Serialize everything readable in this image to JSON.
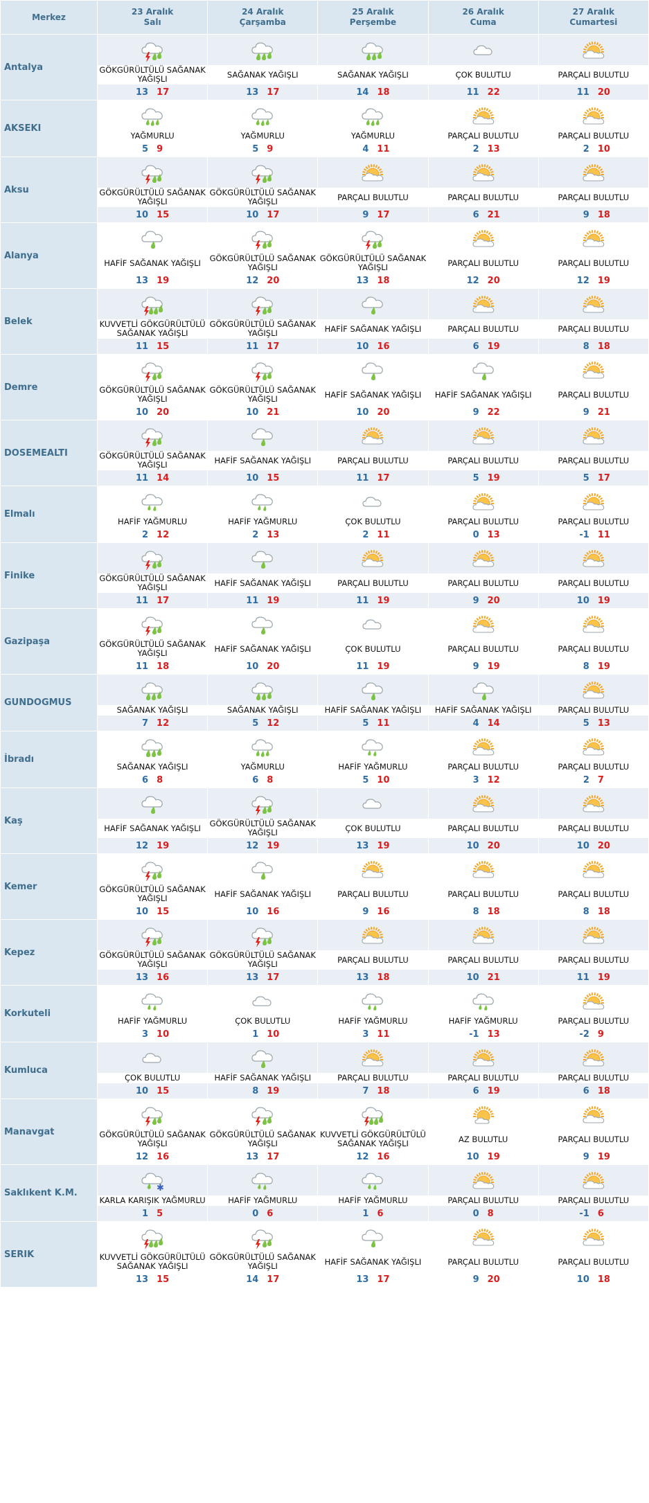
{
  "header": {
    "city_label": "Merkez",
    "days": [
      {
        "date": "23 Aralık",
        "weekday": "Salı"
      },
      {
        "date": "24 Aralık",
        "weekday": "Çarşamba"
      },
      {
        "date": "25 Aralık",
        "weekday": "Perşembe"
      },
      {
        "date": "26 Aralık",
        "weekday": "Cuma"
      },
      {
        "date": "27 Aralık",
        "weekday": "Cumartesi"
      }
    ]
  },
  "icon_map": {
    "GÖKGÜRÜLTÜLÜ SAĞANAK YAĞIŞLI": "thunder-shower-icon",
    "KUVVETLİ GÖKGÜRÜLTÜLÜ SAĞANAK YAĞIŞLI": "heavy-thunder-shower-icon",
    "SAĞANAK YAĞIŞLI": "heavy-shower-icon",
    "HAFİF SAĞANAK YAĞIŞLI": "light-shower-icon",
    "YAĞMURLU": "rain-icon",
    "HAFİF YAĞMURLU": "light-rain-icon",
    "ÇOK BULUTLU": "cloudy-icon",
    "PARÇALI BULUTLU": "partly-cloudy-icon",
    "AZ BULUTLU": "mostly-sunny-icon",
    "KARLA KARIŞIK YAĞMURLU": "sleet-icon"
  },
  "colors": {
    "header_bg": "#dbe7f0",
    "city_text": "#3f6e8e",
    "shade_row": "#e9eff4",
    "low_temp": "#2e6da4",
    "high_temp": "#d81e1e",
    "rain_drop": "#7cc243",
    "lightning": "#e2231a",
    "sun": "#f6a623"
  },
  "cities": [
    {
      "name": "Antalya",
      "days": [
        {
          "cond": "GÖKGÜRÜLTÜLÜ SAĞANAK YAĞIŞLI",
          "min": "13",
          "max": "17"
        },
        {
          "cond": "SAĞANAK YAĞIŞLI",
          "min": "13",
          "max": "17"
        },
        {
          "cond": "SAĞANAK YAĞIŞLI",
          "min": "14",
          "max": "18"
        },
        {
          "cond": "ÇOK BULUTLU",
          "min": "11",
          "max": "22"
        },
        {
          "cond": "PARÇALI BULUTLU",
          "min": "11",
          "max": "20"
        }
      ]
    },
    {
      "name": "AKSEKI",
      "days": [
        {
          "cond": "YAĞMURLU",
          "min": "5",
          "max": "9"
        },
        {
          "cond": "YAĞMURLU",
          "min": "5",
          "max": "9"
        },
        {
          "cond": "YAĞMURLU",
          "min": "4",
          "max": "11"
        },
        {
          "cond": "PARÇALI BULUTLU",
          "min": "2",
          "max": "13"
        },
        {
          "cond": "PARÇALI BULUTLU",
          "min": "2",
          "max": "10"
        }
      ]
    },
    {
      "name": "Aksu",
      "days": [
        {
          "cond": "GÖKGÜRÜLTÜLÜ SAĞANAK YAĞIŞLI",
          "min": "10",
          "max": "15"
        },
        {
          "cond": "GÖKGÜRÜLTÜLÜ SAĞANAK YAĞIŞLI",
          "min": "10",
          "max": "17"
        },
        {
          "cond": "PARÇALI BULUTLU",
          "min": "9",
          "max": "17"
        },
        {
          "cond": "PARÇALI BULUTLU",
          "min": "6",
          "max": "21"
        },
        {
          "cond": "PARÇALI BULUTLU",
          "min": "9",
          "max": "18"
        }
      ]
    },
    {
      "name": "Alanya",
      "days": [
        {
          "cond": "HAFİF SAĞANAK YAĞIŞLI",
          "min": "13",
          "max": "19"
        },
        {
          "cond": "GÖKGÜRÜLTÜLÜ SAĞANAK YAĞIŞLI",
          "min": "12",
          "max": "20"
        },
        {
          "cond": "GÖKGÜRÜLTÜLÜ SAĞANAK YAĞIŞLI",
          "min": "13",
          "max": "18"
        },
        {
          "cond": "PARÇALI BULUTLU",
          "min": "12",
          "max": "20"
        },
        {
          "cond": "PARÇALI BULUTLU",
          "min": "12",
          "max": "19"
        }
      ]
    },
    {
      "name": "Belek",
      "days": [
        {
          "cond": "KUVVETLİ GÖKGÜRÜLTÜLÜ SAĞANAK YAĞIŞLI",
          "min": "11",
          "max": "15"
        },
        {
          "cond": "GÖKGÜRÜLTÜLÜ SAĞANAK YAĞIŞLI",
          "min": "11",
          "max": "17"
        },
        {
          "cond": "HAFİF SAĞANAK YAĞIŞLI",
          "min": "10",
          "max": "16"
        },
        {
          "cond": "PARÇALI BULUTLU",
          "min": "6",
          "max": "19"
        },
        {
          "cond": "PARÇALI BULUTLU",
          "min": "8",
          "max": "18"
        }
      ]
    },
    {
      "name": "Demre",
      "days": [
        {
          "cond": "GÖKGÜRÜLTÜLÜ SAĞANAK YAĞIŞLI",
          "min": "10",
          "max": "20"
        },
        {
          "cond": "GÖKGÜRÜLTÜLÜ SAĞANAK YAĞIŞLI",
          "min": "10",
          "max": "21"
        },
        {
          "cond": "HAFİF SAĞANAK YAĞIŞLI",
          "min": "10",
          "max": "20"
        },
        {
          "cond": "HAFİF SAĞANAK YAĞIŞLI",
          "min": "9",
          "max": "22"
        },
        {
          "cond": "PARÇALI BULUTLU",
          "min": "9",
          "max": "21"
        }
      ]
    },
    {
      "name": "DOSEMEALTI",
      "days": [
        {
          "cond": "GÖKGÜRÜLTÜLÜ SAĞANAK YAĞIŞLI",
          "min": "11",
          "max": "14"
        },
        {
          "cond": "HAFİF SAĞANAK YAĞIŞLI",
          "min": "10",
          "max": "15"
        },
        {
          "cond": "PARÇALI BULUTLU",
          "min": "11",
          "max": "17"
        },
        {
          "cond": "PARÇALI BULUTLU",
          "min": "5",
          "max": "19"
        },
        {
          "cond": "PARÇALI BULUTLU",
          "min": "5",
          "max": "17"
        }
      ]
    },
    {
      "name": "Elmalı",
      "days": [
        {
          "cond": "HAFİF YAĞMURLU",
          "min": "2",
          "max": "12"
        },
        {
          "cond": "HAFİF YAĞMURLU",
          "min": "2",
          "max": "13"
        },
        {
          "cond": "ÇOK BULUTLU",
          "min": "2",
          "max": "11"
        },
        {
          "cond": "PARÇALI BULUTLU",
          "min": "0",
          "max": "13"
        },
        {
          "cond": "PARÇALI BULUTLU",
          "min": "-1",
          "max": "11"
        }
      ]
    },
    {
      "name": "Finike",
      "days": [
        {
          "cond": "GÖKGÜRÜLTÜLÜ SAĞANAK YAĞIŞLI",
          "min": "11",
          "max": "17"
        },
        {
          "cond": "HAFİF SAĞANAK YAĞIŞLI",
          "min": "11",
          "max": "19"
        },
        {
          "cond": "PARÇALI BULUTLU",
          "min": "11",
          "max": "19"
        },
        {
          "cond": "PARÇALI BULUTLU",
          "min": "9",
          "max": "20"
        },
        {
          "cond": "PARÇALI BULUTLU",
          "min": "10",
          "max": "19"
        }
      ]
    },
    {
      "name": "Gazipaşa",
      "days": [
        {
          "cond": "GÖKGÜRÜLTÜLÜ SAĞANAK YAĞIŞLI",
          "min": "11",
          "max": "18"
        },
        {
          "cond": "HAFİF SAĞANAK YAĞIŞLI",
          "min": "10",
          "max": "20"
        },
        {
          "cond": "ÇOK BULUTLU",
          "min": "11",
          "max": "19"
        },
        {
          "cond": "PARÇALI BULUTLU",
          "min": "9",
          "max": "19"
        },
        {
          "cond": "PARÇALI BULUTLU",
          "min": "8",
          "max": "19"
        }
      ]
    },
    {
      "name": "GUNDOGMUS",
      "days": [
        {
          "cond": "SAĞANAK YAĞIŞLI",
          "min": "7",
          "max": "12"
        },
        {
          "cond": "SAĞANAK YAĞIŞLI",
          "min": "5",
          "max": "12"
        },
        {
          "cond": "HAFİF SAĞANAK YAĞIŞLI",
          "min": "5",
          "max": "11"
        },
        {
          "cond": "HAFİF SAĞANAK YAĞIŞLI",
          "min": "4",
          "max": "14"
        },
        {
          "cond": "PARÇALI BULUTLU",
          "min": "5",
          "max": "13"
        }
      ]
    },
    {
      "name": "İbradı",
      "days": [
        {
          "cond": "SAĞANAK YAĞIŞLI",
          "min": "6",
          "max": "8"
        },
        {
          "cond": "YAĞMURLU",
          "min": "6",
          "max": "8"
        },
        {
          "cond": "HAFİF YAĞMURLU",
          "min": "5",
          "max": "10"
        },
        {
          "cond": "PARÇALI BULUTLU",
          "min": "3",
          "max": "12"
        },
        {
          "cond": "PARÇALI BULUTLU",
          "min": "2",
          "max": "7"
        }
      ]
    },
    {
      "name": "Kaş",
      "days": [
        {
          "cond": "HAFİF SAĞANAK YAĞIŞLI",
          "min": "12",
          "max": "19"
        },
        {
          "cond": "GÖKGÜRÜLTÜLÜ SAĞANAK YAĞIŞLI",
          "min": "12",
          "max": "19"
        },
        {
          "cond": "ÇOK BULUTLU",
          "min": "13",
          "max": "19"
        },
        {
          "cond": "PARÇALI BULUTLU",
          "min": "10",
          "max": "20"
        },
        {
          "cond": "PARÇALI BULUTLU",
          "min": "10",
          "max": "20"
        }
      ]
    },
    {
      "name": "Kemer",
      "days": [
        {
          "cond": "GÖKGÜRÜLTÜLÜ SAĞANAK YAĞIŞLI",
          "min": "10",
          "max": "15"
        },
        {
          "cond": "HAFİF SAĞANAK YAĞIŞLI",
          "min": "10",
          "max": "16"
        },
        {
          "cond": "PARÇALI BULUTLU",
          "min": "9",
          "max": "16"
        },
        {
          "cond": "PARÇALI BULUTLU",
          "min": "8",
          "max": "18"
        },
        {
          "cond": "PARÇALI BULUTLU",
          "min": "8",
          "max": "18"
        }
      ]
    },
    {
      "name": "Kepez",
      "days": [
        {
          "cond": "GÖKGÜRÜLTÜLÜ SAĞANAK YAĞIŞLI",
          "min": "13",
          "max": "16"
        },
        {
          "cond": "GÖKGÜRÜLTÜLÜ SAĞANAK YAĞIŞLI",
          "min": "13",
          "max": "17"
        },
        {
          "cond": "PARÇALI BULUTLU",
          "min": "13",
          "max": "18"
        },
        {
          "cond": "PARÇALI BULUTLU",
          "min": "10",
          "max": "21"
        },
        {
          "cond": "PARÇALI BULUTLU",
          "min": "11",
          "max": "19"
        }
      ]
    },
    {
      "name": "Korkuteli",
      "days": [
        {
          "cond": "HAFİF YAĞMURLU",
          "min": "3",
          "max": "10"
        },
        {
          "cond": "ÇOK BULUTLU",
          "min": "1",
          "max": "10"
        },
        {
          "cond": "HAFİF YAĞMURLU",
          "min": "3",
          "max": "11"
        },
        {
          "cond": "HAFİF YAĞMURLU",
          "min": "-1",
          "max": "13"
        },
        {
          "cond": "PARÇALI BULUTLU",
          "min": "-2",
          "max": "9"
        }
      ]
    },
    {
      "name": "Kumluca",
      "days": [
        {
          "cond": "ÇOK BULUTLU",
          "min": "10",
          "max": "15"
        },
        {
          "cond": "HAFİF SAĞANAK YAĞIŞLI",
          "min": "8",
          "max": "19"
        },
        {
          "cond": "PARÇALI BULUTLU",
          "min": "7",
          "max": "18"
        },
        {
          "cond": "PARÇALI BULUTLU",
          "min": "6",
          "max": "19"
        },
        {
          "cond": "PARÇALI BULUTLU",
          "min": "6",
          "max": "18"
        }
      ]
    },
    {
      "name": "Manavgat",
      "days": [
        {
          "cond": "GÖKGÜRÜLTÜLÜ SAĞANAK YAĞIŞLI",
          "min": "12",
          "max": "16"
        },
        {
          "cond": "GÖKGÜRÜLTÜLÜ SAĞANAK YAĞIŞLI",
          "min": "13",
          "max": "17"
        },
        {
          "cond": "KUVVETLİ GÖKGÜRÜLTÜLÜ SAĞANAK YAĞIŞLI",
          "min": "12",
          "max": "16"
        },
        {
          "cond": "AZ BULUTLU",
          "min": "10",
          "max": "19"
        },
        {
          "cond": "PARÇALI BULUTLU",
          "min": "9",
          "max": "19"
        }
      ]
    },
    {
      "name": "Saklıkent K.M.",
      "days": [
        {
          "cond": "KARLA KARIŞIK YAĞMURLU",
          "min": "1",
          "max": "5"
        },
        {
          "cond": "HAFİF YAĞMURLU",
          "min": "0",
          "max": "6"
        },
        {
          "cond": "HAFİF YAĞMURLU",
          "min": "1",
          "max": "6"
        },
        {
          "cond": "PARÇALI BULUTLU",
          "min": "0",
          "max": "8"
        },
        {
          "cond": "PARÇALI BULUTLU",
          "min": "-1",
          "max": "6"
        }
      ]
    },
    {
      "name": "SERIK",
      "days": [
        {
          "cond": "KUVVETLİ GÖKGÜRÜLTÜLÜ SAĞANAK YAĞIŞLI",
          "min": "13",
          "max": "15"
        },
        {
          "cond": "GÖKGÜRÜLTÜLÜ SAĞANAK YAĞIŞLI",
          "min": "14",
          "max": "17"
        },
        {
          "cond": "HAFİF SAĞANAK YAĞIŞLI",
          "min": "13",
          "max": "17"
        },
        {
          "cond": "PARÇALI BULUTLU",
          "min": "9",
          "max": "20"
        },
        {
          "cond": "PARÇALI BULUTLU",
          "min": "10",
          "max": "18"
        }
      ]
    }
  ]
}
